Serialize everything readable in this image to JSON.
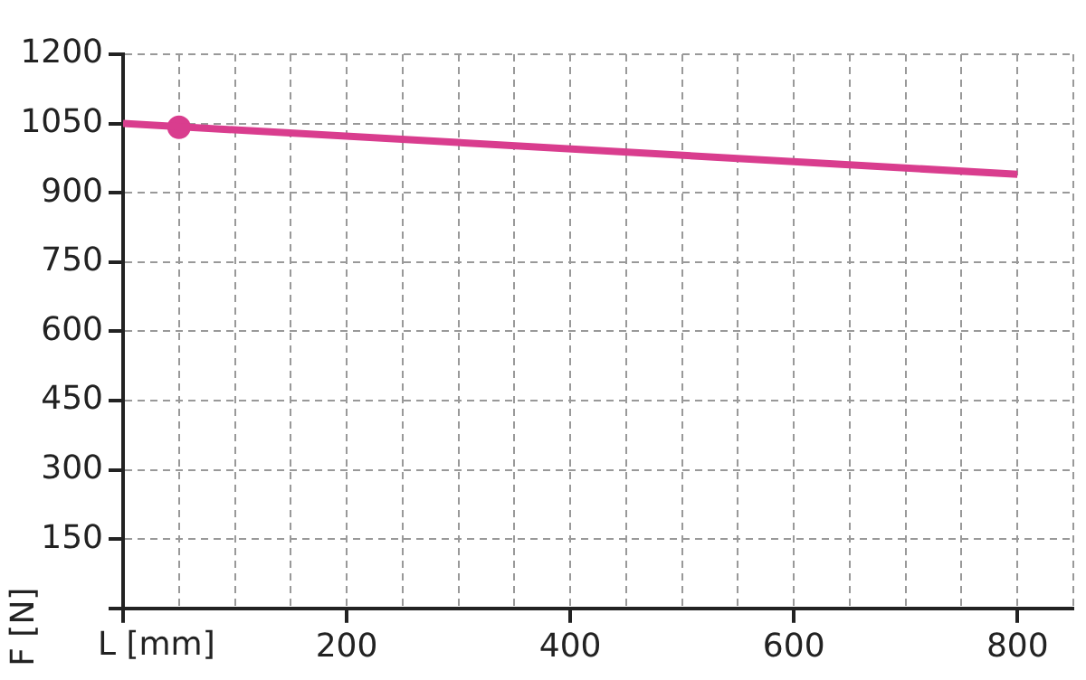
{
  "chart_data": {
    "type": "line",
    "xlabel": "L [mm]",
    "ylabel": "F [N]",
    "x": [
      0,
      800
    ],
    "series": [
      {
        "type": "line",
        "color": "#d93d8e",
        "values": [
          1050,
          940
        ]
      },
      {
        "type": "scatter",
        "color": "#d93d8e",
        "x": [
          50
        ],
        "values": [
          1042
        ],
        "marker": "circle"
      }
    ],
    "xlim": [
      0,
      850
    ],
    "xticks": [
      {
        "value": 0,
        "label": null
      },
      {
        "value": 50,
        "label": null
      },
      {
        "value": 100,
        "label": null
      },
      {
        "value": 150,
        "label": null
      },
      200,
      {
        "value": 250,
        "label": null
      },
      {
        "value": 300,
        "label": null
      },
      {
        "value": 350,
        "label": null
      },
      400,
      {
        "value": 450,
        "label": null
      },
      {
        "value": 500,
        "label": null
      },
      {
        "value": 550,
        "label": null
      },
      600,
      {
        "value": 650,
        "label": null
      },
      {
        "value": 700,
        "label": null
      },
      {
        "value": 750,
        "label": null
      },
      800,
      {
        "value": 850,
        "label": null
      }
    ],
    "ylim": [
      0,
      1200
    ],
    "yticks": [
      {
        "value": 0,
        "label": null
      },
      150,
      300,
      450,
      600,
      750,
      900,
      1050,
      1200
    ],
    "grid": true,
    "legend": false,
    "marker": "none",
    "line_style": "solid"
  }
}
